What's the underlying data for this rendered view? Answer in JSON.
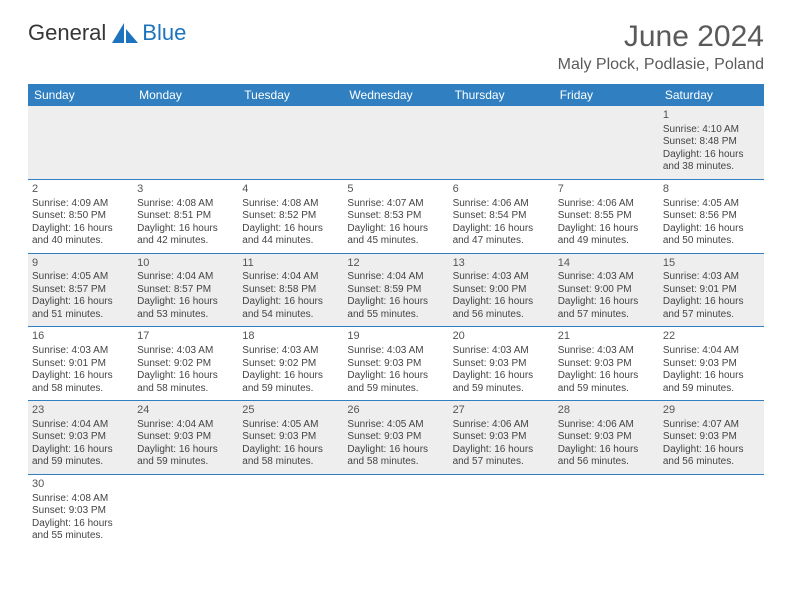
{
  "logo": {
    "text1": "General",
    "text2": "Blue"
  },
  "title": "June 2024",
  "location": "Maly Plock, Podlasie, Poland",
  "colors": {
    "header_bg": "#2f7fc1",
    "header_text": "#ffffff",
    "row_alt_bg": "#eeeeee",
    "text": "#444444",
    "title_text": "#5a5a5a",
    "logo_blue": "#1e73be"
  },
  "weekdays": [
    "Sunday",
    "Monday",
    "Tuesday",
    "Wednesday",
    "Thursday",
    "Friday",
    "Saturday"
  ],
  "weeks": [
    [
      null,
      null,
      null,
      null,
      null,
      null,
      {
        "day": "1",
        "sunrise": "Sunrise: 4:10 AM",
        "sunset": "Sunset: 8:48 PM",
        "daylight": "Daylight: 16 hours and 38 minutes."
      }
    ],
    [
      {
        "day": "2",
        "sunrise": "Sunrise: 4:09 AM",
        "sunset": "Sunset: 8:50 PM",
        "daylight": "Daylight: 16 hours and 40 minutes."
      },
      {
        "day": "3",
        "sunrise": "Sunrise: 4:08 AM",
        "sunset": "Sunset: 8:51 PM",
        "daylight": "Daylight: 16 hours and 42 minutes."
      },
      {
        "day": "4",
        "sunrise": "Sunrise: 4:08 AM",
        "sunset": "Sunset: 8:52 PM",
        "daylight": "Daylight: 16 hours and 44 minutes."
      },
      {
        "day": "5",
        "sunrise": "Sunrise: 4:07 AM",
        "sunset": "Sunset: 8:53 PM",
        "daylight": "Daylight: 16 hours and 45 minutes."
      },
      {
        "day": "6",
        "sunrise": "Sunrise: 4:06 AM",
        "sunset": "Sunset: 8:54 PM",
        "daylight": "Daylight: 16 hours and 47 minutes."
      },
      {
        "day": "7",
        "sunrise": "Sunrise: 4:06 AM",
        "sunset": "Sunset: 8:55 PM",
        "daylight": "Daylight: 16 hours and 49 minutes."
      },
      {
        "day": "8",
        "sunrise": "Sunrise: 4:05 AM",
        "sunset": "Sunset: 8:56 PM",
        "daylight": "Daylight: 16 hours and 50 minutes."
      }
    ],
    [
      {
        "day": "9",
        "sunrise": "Sunrise: 4:05 AM",
        "sunset": "Sunset: 8:57 PM",
        "daylight": "Daylight: 16 hours and 51 minutes."
      },
      {
        "day": "10",
        "sunrise": "Sunrise: 4:04 AM",
        "sunset": "Sunset: 8:57 PM",
        "daylight": "Daylight: 16 hours and 53 minutes."
      },
      {
        "day": "11",
        "sunrise": "Sunrise: 4:04 AM",
        "sunset": "Sunset: 8:58 PM",
        "daylight": "Daylight: 16 hours and 54 minutes."
      },
      {
        "day": "12",
        "sunrise": "Sunrise: 4:04 AM",
        "sunset": "Sunset: 8:59 PM",
        "daylight": "Daylight: 16 hours and 55 minutes."
      },
      {
        "day": "13",
        "sunrise": "Sunrise: 4:03 AM",
        "sunset": "Sunset: 9:00 PM",
        "daylight": "Daylight: 16 hours and 56 minutes."
      },
      {
        "day": "14",
        "sunrise": "Sunrise: 4:03 AM",
        "sunset": "Sunset: 9:00 PM",
        "daylight": "Daylight: 16 hours and 57 minutes."
      },
      {
        "day": "15",
        "sunrise": "Sunrise: 4:03 AM",
        "sunset": "Sunset: 9:01 PM",
        "daylight": "Daylight: 16 hours and 57 minutes."
      }
    ],
    [
      {
        "day": "16",
        "sunrise": "Sunrise: 4:03 AM",
        "sunset": "Sunset: 9:01 PM",
        "daylight": "Daylight: 16 hours and 58 minutes."
      },
      {
        "day": "17",
        "sunrise": "Sunrise: 4:03 AM",
        "sunset": "Sunset: 9:02 PM",
        "daylight": "Daylight: 16 hours and 58 minutes."
      },
      {
        "day": "18",
        "sunrise": "Sunrise: 4:03 AM",
        "sunset": "Sunset: 9:02 PM",
        "daylight": "Daylight: 16 hours and 59 minutes."
      },
      {
        "day": "19",
        "sunrise": "Sunrise: 4:03 AM",
        "sunset": "Sunset: 9:03 PM",
        "daylight": "Daylight: 16 hours and 59 minutes."
      },
      {
        "day": "20",
        "sunrise": "Sunrise: 4:03 AM",
        "sunset": "Sunset: 9:03 PM",
        "daylight": "Daylight: 16 hours and 59 minutes."
      },
      {
        "day": "21",
        "sunrise": "Sunrise: 4:03 AM",
        "sunset": "Sunset: 9:03 PM",
        "daylight": "Daylight: 16 hours and 59 minutes."
      },
      {
        "day": "22",
        "sunrise": "Sunrise: 4:04 AM",
        "sunset": "Sunset: 9:03 PM",
        "daylight": "Daylight: 16 hours and 59 minutes."
      }
    ],
    [
      {
        "day": "23",
        "sunrise": "Sunrise: 4:04 AM",
        "sunset": "Sunset: 9:03 PM",
        "daylight": "Daylight: 16 hours and 59 minutes."
      },
      {
        "day": "24",
        "sunrise": "Sunrise: 4:04 AM",
        "sunset": "Sunset: 9:03 PM",
        "daylight": "Daylight: 16 hours and 59 minutes."
      },
      {
        "day": "25",
        "sunrise": "Sunrise: 4:05 AM",
        "sunset": "Sunset: 9:03 PM",
        "daylight": "Daylight: 16 hours and 58 minutes."
      },
      {
        "day": "26",
        "sunrise": "Sunrise: 4:05 AM",
        "sunset": "Sunset: 9:03 PM",
        "daylight": "Daylight: 16 hours and 58 minutes."
      },
      {
        "day": "27",
        "sunrise": "Sunrise: 4:06 AM",
        "sunset": "Sunset: 9:03 PM",
        "daylight": "Daylight: 16 hours and 57 minutes."
      },
      {
        "day": "28",
        "sunrise": "Sunrise: 4:06 AM",
        "sunset": "Sunset: 9:03 PM",
        "daylight": "Daylight: 16 hours and 56 minutes."
      },
      {
        "day": "29",
        "sunrise": "Sunrise: 4:07 AM",
        "sunset": "Sunset: 9:03 PM",
        "daylight": "Daylight: 16 hours and 56 minutes."
      }
    ],
    [
      {
        "day": "30",
        "sunrise": "Sunrise: 4:08 AM",
        "sunset": "Sunset: 9:03 PM",
        "daylight": "Daylight: 16 hours and 55 minutes."
      },
      null,
      null,
      null,
      null,
      null,
      null
    ]
  ]
}
